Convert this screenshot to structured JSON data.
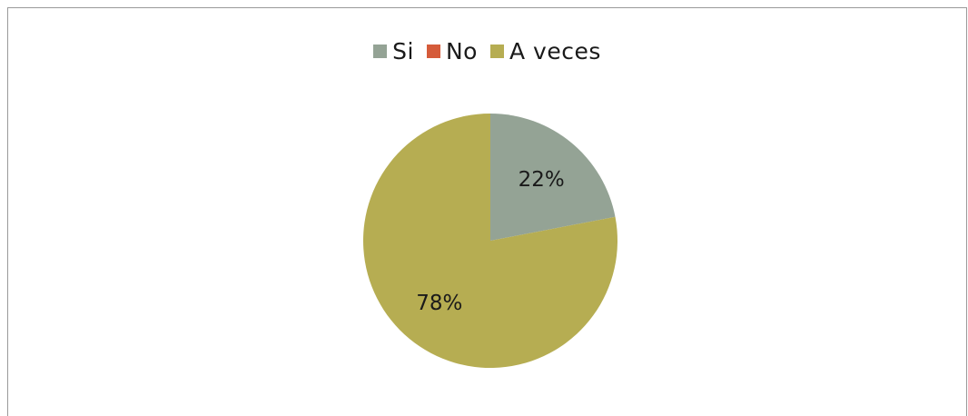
{
  "chart_data": {
    "type": "pie",
    "categories": [
      "Si",
      "No",
      "A veces"
    ],
    "values": [
      22,
      0,
      78
    ],
    "data_labels": [
      "22%",
      "",
      "78%"
    ],
    "colors": [
      "#94a395",
      "#d55b3a",
      "#b6ad52"
    ],
    "legend_position": "top"
  }
}
